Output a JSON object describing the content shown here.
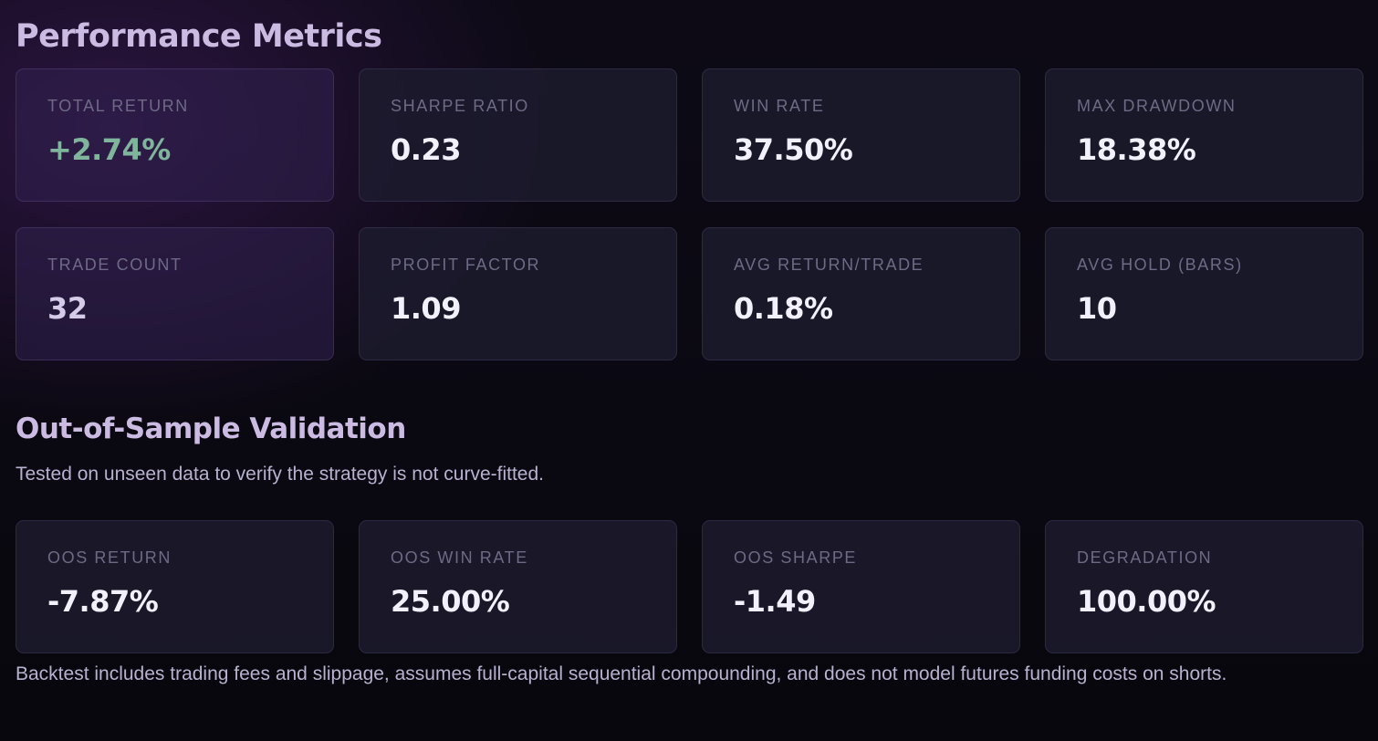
{
  "performance": {
    "title": "Performance Metrics",
    "metrics": [
      {
        "label": "TOTAL RETURN",
        "value": "+2.74%"
      },
      {
        "label": "SHARPE RATIO",
        "value": "0.23"
      },
      {
        "label": "WIN RATE",
        "value": "37.50%"
      },
      {
        "label": "MAX DRAWDOWN",
        "value": "18.38%"
      },
      {
        "label": "TRADE COUNT",
        "value": "32"
      },
      {
        "label": "PROFIT FACTOR",
        "value": "1.09"
      },
      {
        "label": "AVG RETURN/TRADE",
        "value": "0.18%"
      },
      {
        "label": "AVG HOLD (BARS)",
        "value": "10"
      }
    ]
  },
  "oos": {
    "title": "Out-of-Sample Validation",
    "subtitle": "Tested on unseen data to verify the strategy is not curve-fitted.",
    "metrics": [
      {
        "label": "OOS RETURN",
        "value": "-7.87%"
      },
      {
        "label": "OOS WIN RATE",
        "value": "25.00%"
      },
      {
        "label": "OOS SHARPE",
        "value": "-1.49"
      },
      {
        "label": "DEGRADATION",
        "value": "100.00%"
      }
    ]
  },
  "footer_note": "Backtest includes trading fees and slippage, assumes full-capital sequential compounding, and does not model futures funding costs on shorts.",
  "colors": {
    "positive": "#7fb59b",
    "label": "#6e6a86",
    "heading": "#cbbbe2",
    "accent_background": "#2a1d44"
  }
}
